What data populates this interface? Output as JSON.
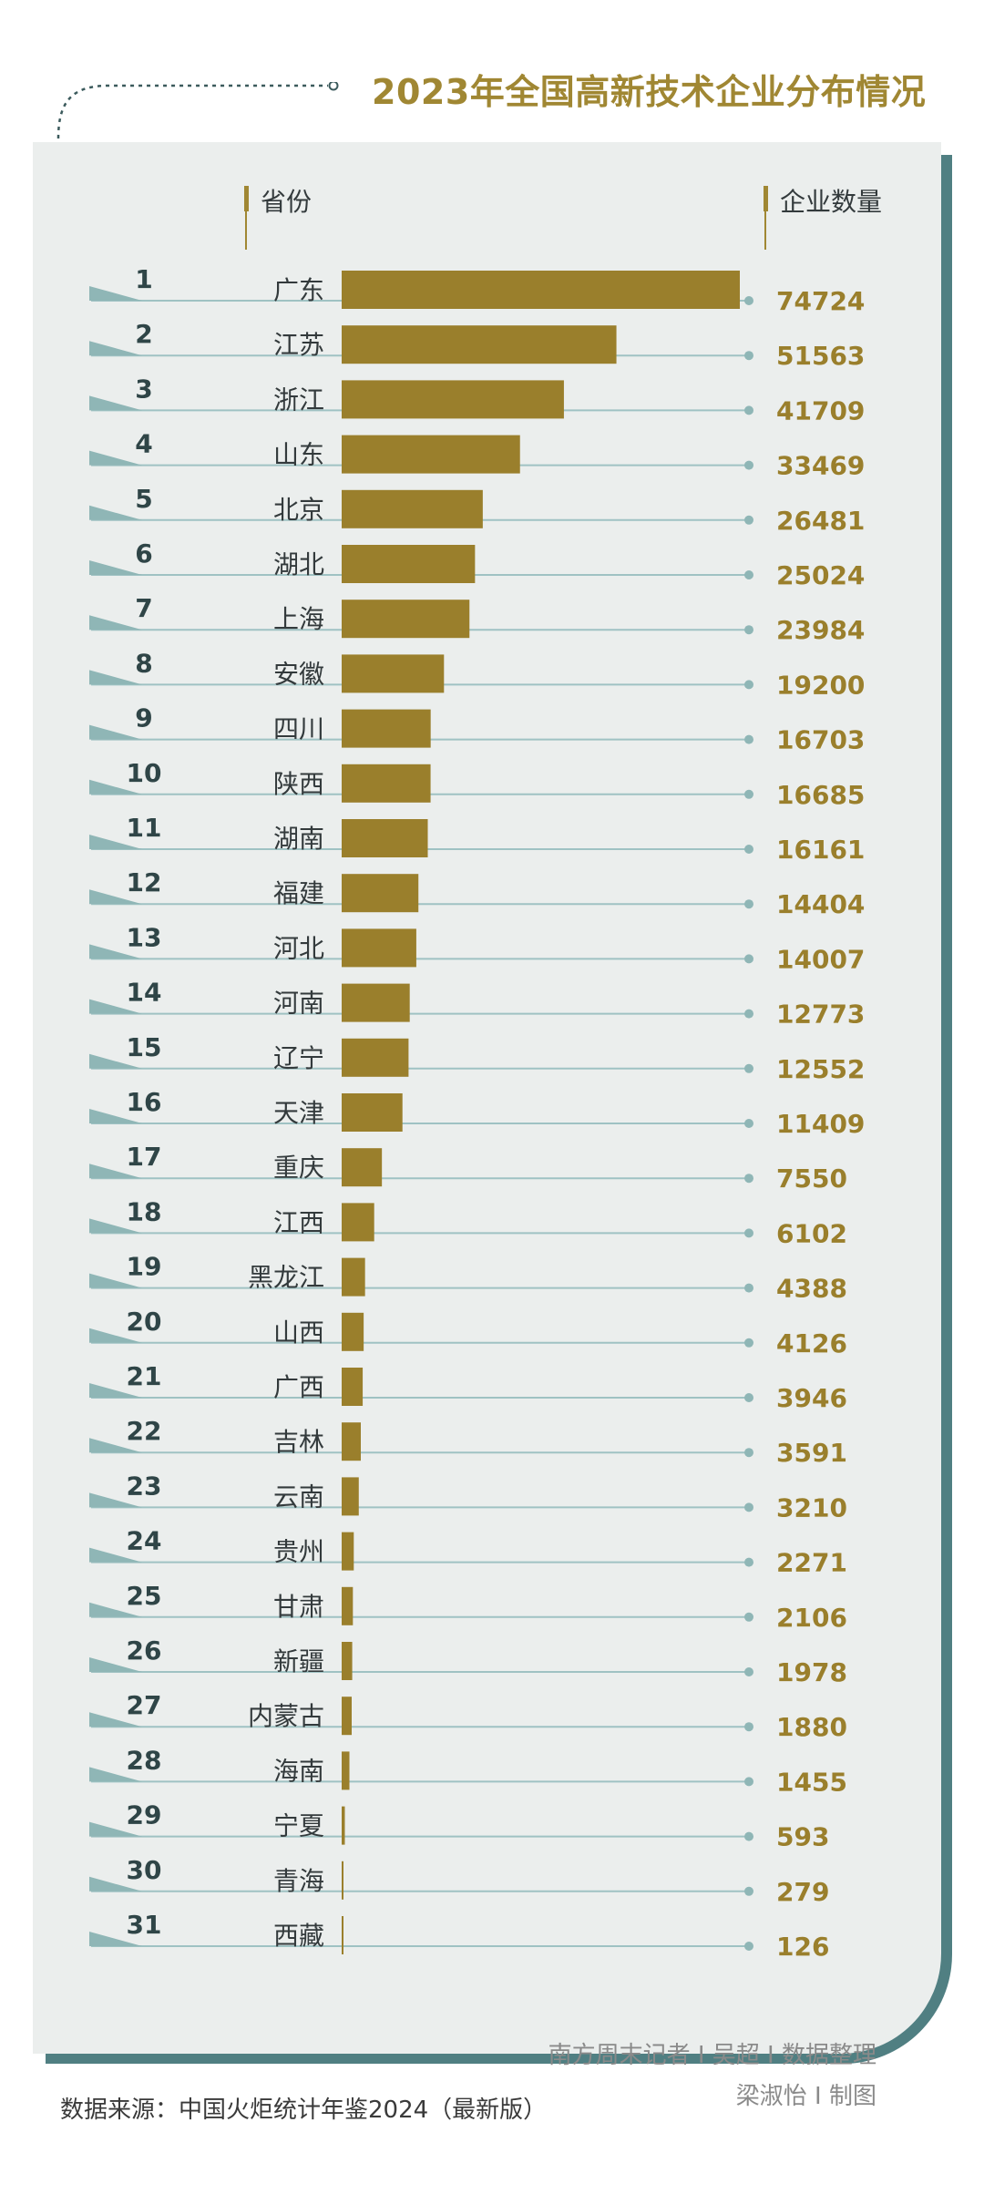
{
  "title": "2023年全国高新技术企业分布情况",
  "header": {
    "province_label": "省份",
    "count_label": "企业数量"
  },
  "colors": {
    "bar": "#9a7f2c",
    "value_text": "#9a7f2c",
    "rank_text": "#2f4547",
    "province_text": "#333a3c",
    "guide_line": "#9fc2c3",
    "wedge": "#8fb6b6",
    "card": "#ebeeed",
    "card_edge": "#507f82"
  },
  "chart_data": {
    "type": "bar",
    "title": "2023年全国高新技术企业分布情况",
    "xlabel": "省份",
    "ylabel": "企业数量",
    "orientation": "horizontal",
    "ranks": [
      1,
      2,
      3,
      4,
      5,
      6,
      7,
      8,
      9,
      10,
      11,
      12,
      13,
      14,
      15,
      16,
      17,
      18,
      19,
      20,
      21,
      22,
      23,
      24,
      25,
      26,
      27,
      28,
      29,
      30,
      31
    ],
    "categories": [
      "广东",
      "江苏",
      "浙江",
      "山东",
      "北京",
      "湖北",
      "上海",
      "安徽",
      "四川",
      "陕西",
      "湖南",
      "福建",
      "河北",
      "河南",
      "辽宁",
      "天津",
      "重庆",
      "江西",
      "黑龙江",
      "山西",
      "广西",
      "吉林",
      "云南",
      "贵州",
      "甘肃",
      "新疆",
      "内蒙古",
      "海南",
      "宁夏",
      "青海",
      "西藏"
    ],
    "values": [
      74724,
      51563,
      41709,
      33469,
      26481,
      25024,
      23984,
      19200,
      16703,
      16685,
      16161,
      14404,
      14007,
      12773,
      12552,
      11409,
      7550,
      6102,
      4388,
      4126,
      3946,
      3591,
      3210,
      2271,
      2106,
      1978,
      1880,
      1455,
      593,
      279,
      126
    ],
    "xlim": [
      0,
      74724
    ]
  },
  "footer": {
    "source": "数据来源：中国火炬统计年鉴2024（最新版）",
    "credit_line1": "南方周末记者 I 吴超 I 数据整理",
    "credit_line2": "梁淑怡 I 制图"
  }
}
